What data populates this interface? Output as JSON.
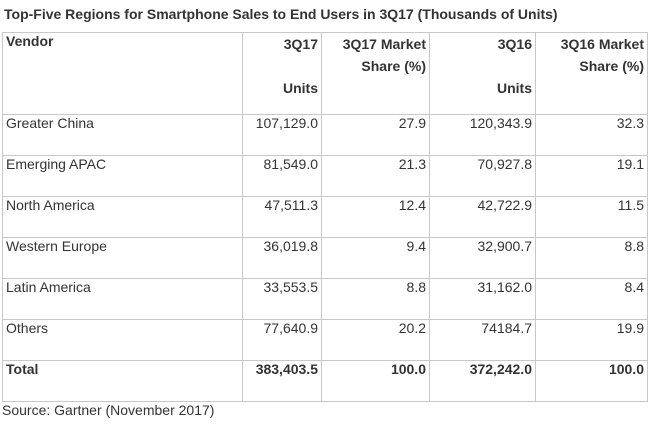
{
  "title": "Top-Five Regions for Smartphone Sales to End Users in 3Q17 (Thousands of Units)",
  "table": {
    "headers": {
      "vendor": "Vendor",
      "q3_17_line1": "3Q17",
      "q3_17_line2": "Units",
      "q3_17_share_line1": "3Q17 Market",
      "q3_17_share_line2": "Share (%)",
      "q3_16_line1": "3Q16",
      "q3_16_line2": "Units",
      "q3_16_share_line1": "3Q16 Market",
      "q3_16_share_line2": "Share (%)"
    },
    "rows": [
      {
        "region": "Greater China",
        "units_3q17": "107,129.0",
        "share_3q17": "27.9",
        "units_3q16": "120,343.9",
        "share_3q16": "32.3"
      },
      {
        "region": "Emerging APAC",
        "units_3q17": "81,549.0",
        "share_3q17": "21.3",
        "units_3q16": "70,927.8",
        "share_3q16": "19.1"
      },
      {
        "region": "North America",
        "units_3q17": "47,511.3",
        "share_3q17": "12.4",
        "units_3q16": "42,722.9",
        "share_3q16": "11.5"
      },
      {
        "region": "Western Europe",
        "units_3q17": "36,019.8",
        "share_3q17": "9.4",
        "units_3q16": "32,900.7",
        "share_3q16": "8.8"
      },
      {
        "region": "Latin America",
        "units_3q17": "33,553.5",
        "share_3q17": "8.8",
        "units_3q16": "31,162.0",
        "share_3q16": "8.4"
      },
      {
        "region": "Others",
        "units_3q17": "77,640.9",
        "share_3q17": "20.2",
        "units_3q16": "74184.7",
        "share_3q16": "19.9"
      }
    ],
    "total": {
      "region": "Total",
      "units_3q17": "383,403.5",
      "share_3q17": "100.0",
      "units_3q16": "372,242.0",
      "share_3q16": "100.0"
    }
  },
  "source": "Source: Gartner (November 2017)"
}
